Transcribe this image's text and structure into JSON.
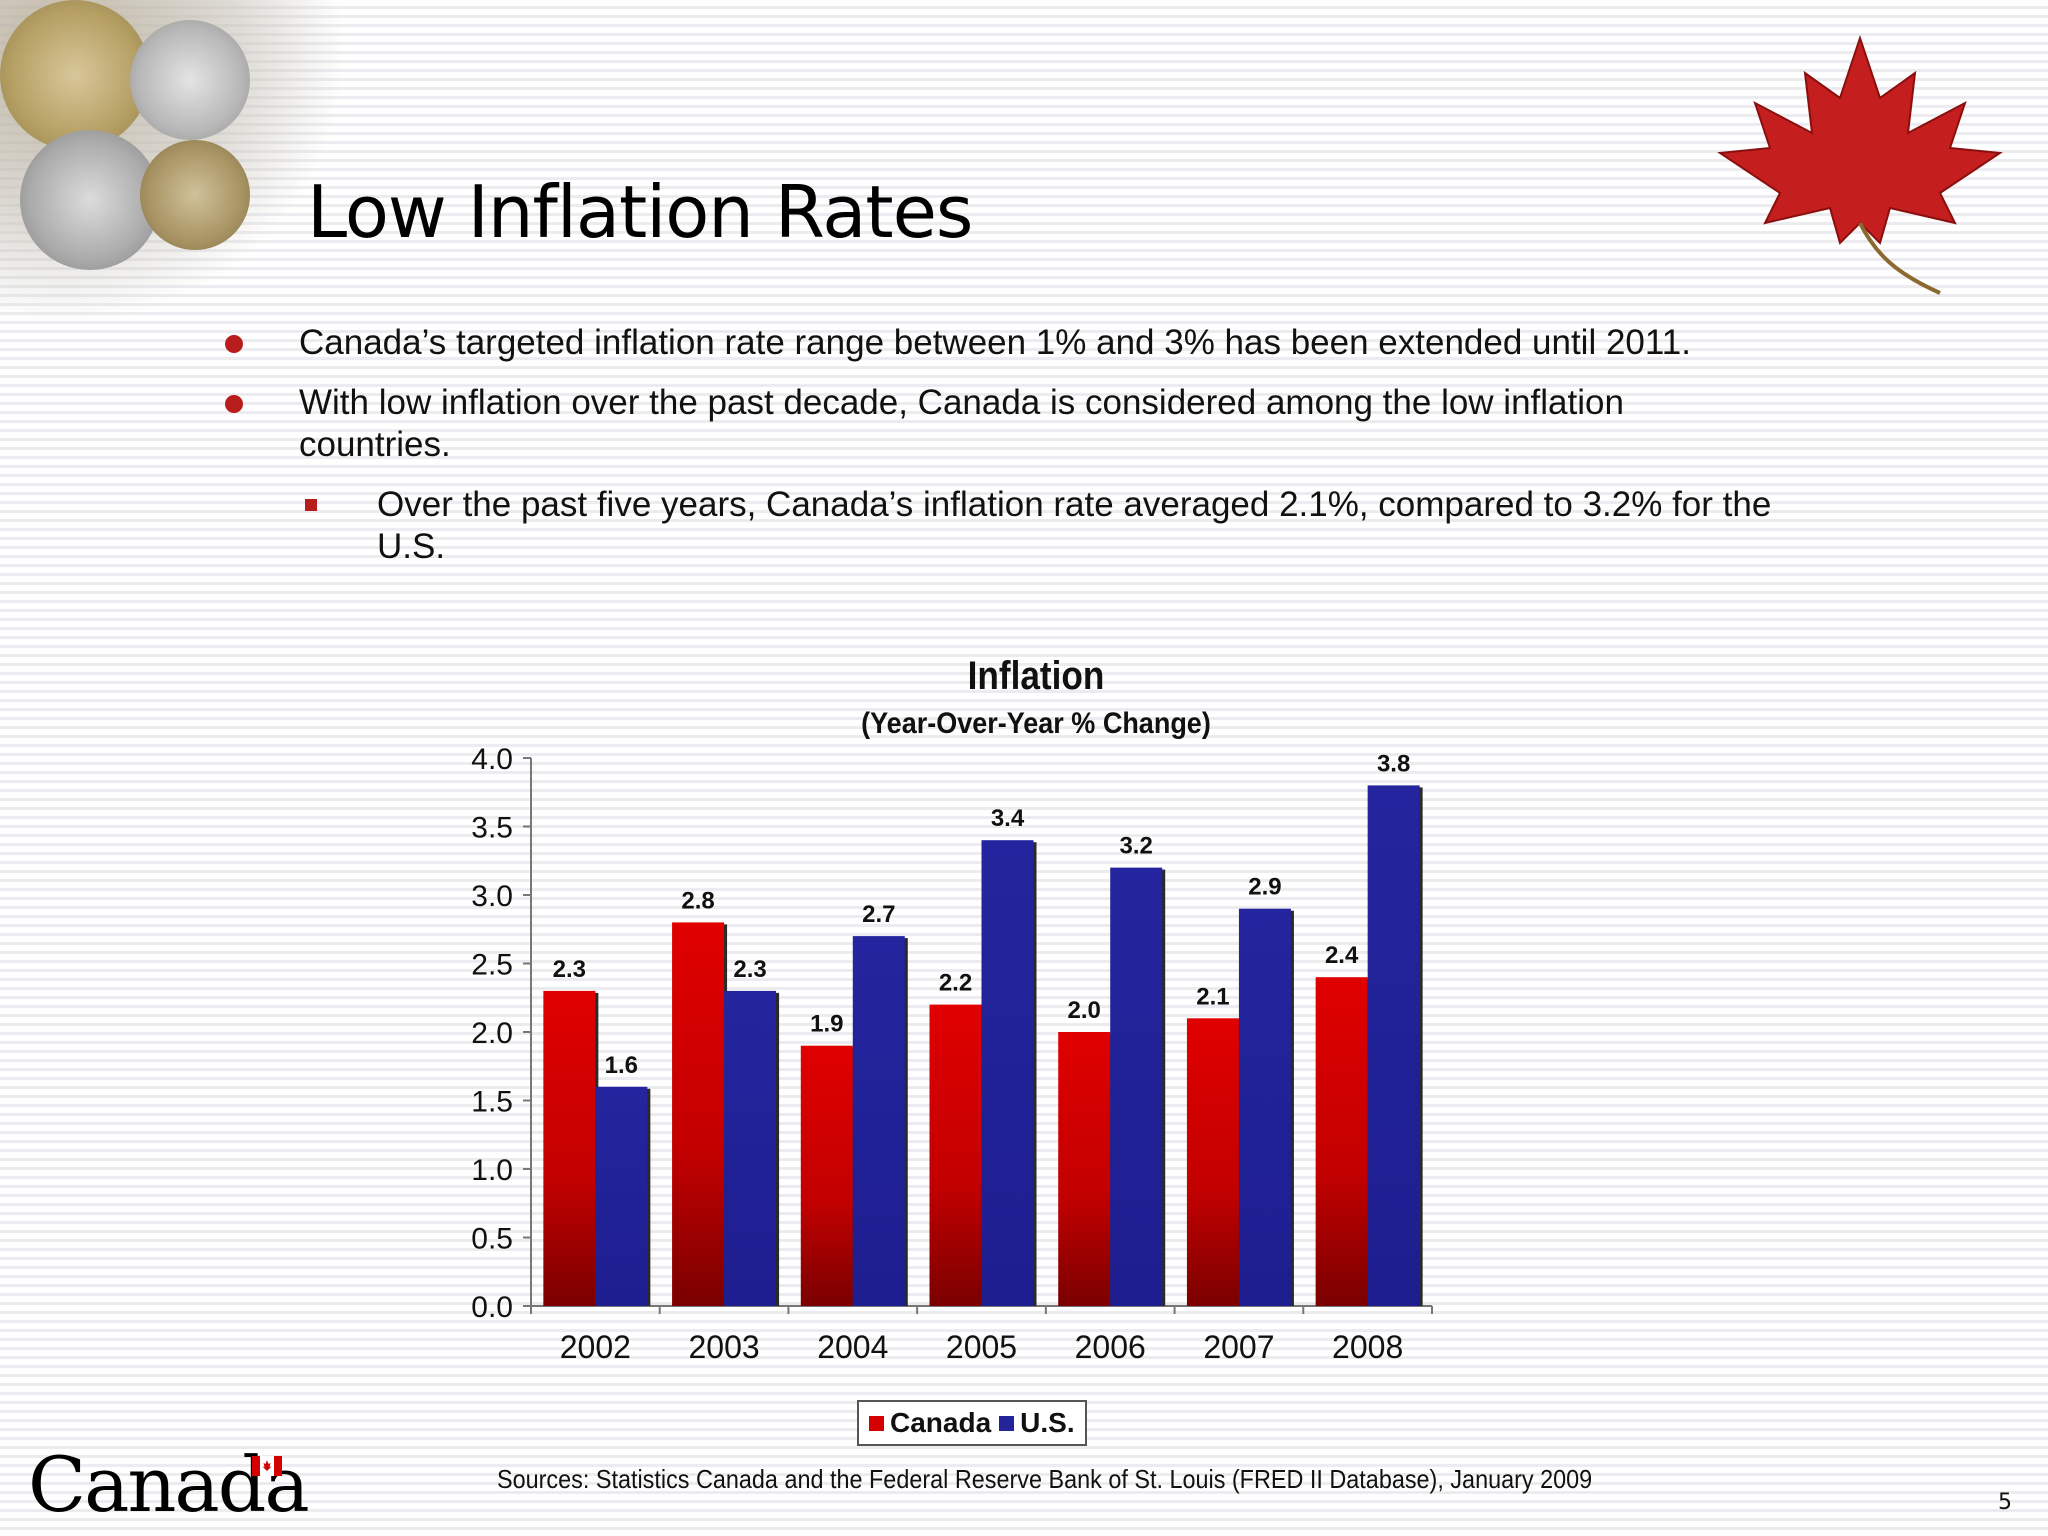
{
  "slide": {
    "title": "Low Inflation Rates",
    "page_number": "5",
    "logo_wordmark": "Canada"
  },
  "bullets": [
    {
      "text": "Canada’s targeted inflation rate range between 1% and 3%  has been extended until 2011."
    },
    {
      "text": "With low inflation over the past decade, Canada is considered among the low inflation countries."
    }
  ],
  "sub_bullet": {
    "text": "Over the past five years, Canada’s inflation rate averaged 2.1%, compared  to 3.2% for the U.S."
  },
  "source": "Sources: Statistics Canada and the Federal Reserve Bank of St. Louis (FRED II Database), January 2009",
  "colors": {
    "accent": "#b81c1c",
    "canada": "#d40000",
    "us": "#23239a"
  },
  "chart_data": {
    "type": "bar",
    "title": "Inflation",
    "subtitle": "(Year-Over-Year % Change)",
    "categories": [
      "2002",
      "2003",
      "2004",
      "2005",
      "2006",
      "2007",
      "2008"
    ],
    "series": [
      {
        "name": "Canada",
        "color": "#d40000",
        "values": [
          2.3,
          2.8,
          1.9,
          2.2,
          2.0,
          2.1,
          2.4
        ],
        "labels": [
          "2.3",
          "2.8",
          "1.9",
          "2.2",
          "2.0",
          "2.1",
          "2.4"
        ]
      },
      {
        "name": "U.S.",
        "color": "#23239a",
        "values": [
          1.6,
          2.3,
          2.7,
          3.4,
          3.2,
          2.9,
          3.8
        ],
        "labels": [
          "1.6",
          "2.3",
          "2.7",
          "3.4",
          "3.2",
          "2.9",
          "3.8"
        ]
      }
    ],
    "yticks": [
      "0.0",
      "0.5",
      "1.0",
      "1.5",
      "2.0",
      "2.5",
      "3.0",
      "3.5",
      "4.0"
    ],
    "ylim": [
      0,
      4
    ],
    "legend_position": "bottom",
    "grid": false
  }
}
